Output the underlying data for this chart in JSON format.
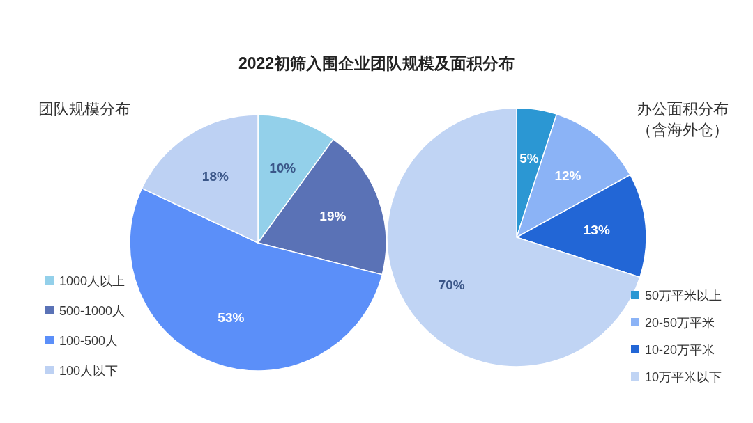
{
  "chart_data": [
    {
      "type": "pie",
      "title": "2022初筛入围企业团队规模及面积分布",
      "subtitle": "团队规模分布",
      "categories": [
        "1000人以上",
        "500-1000人",
        "100-500人",
        "100人以下"
      ],
      "values": [
        10,
        19,
        53,
        18
      ],
      "colors": [
        "#93d0ea",
        "#5a72b6",
        "#5b8ff9",
        "#bdd1f3"
      ],
      "value_labels": [
        "10%",
        "19%",
        "53%",
        "18%"
      ],
      "legend": "bottom left"
    },
    {
      "type": "pie",
      "subtitle": "办公面积分布（含海外仓）",
      "categories": [
        "50万平米以上",
        "20-50万平米",
        "10-20万平米",
        "10万平米以下"
      ],
      "values": [
        5,
        12,
        13,
        70
      ],
      "colors": [
        "#2b97d3",
        "#8bb3f6",
        "#2266d6",
        "#c0d4f4"
      ],
      "value_labels": [
        "5%",
        "12%",
        "13%",
        "70%"
      ],
      "legend": "bottom right"
    }
  ]
}
